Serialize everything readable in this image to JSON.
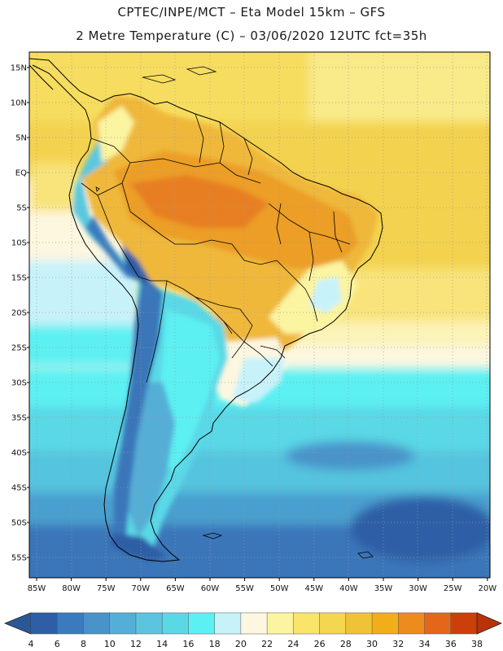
{
  "header": {
    "line1": "CPTEC/INPE/MCT –  Eta Model 15km – GFS",
    "line2": "2 Metre Temperature (C) – 03/06/2020 12UTC fct=35h"
  },
  "map": {
    "lat_labels": [
      "15N",
      "10N",
      "5N",
      "EQ",
      "5S",
      "10S",
      "15S",
      "20S",
      "25S",
      "30S",
      "35S",
      "40S",
      "45S",
      "50S",
      "55S"
    ],
    "lon_labels": [
      "85W",
      "80W",
      "75W",
      "70W",
      "65W",
      "60W",
      "55W",
      "50W",
      "45W",
      "40W",
      "35W",
      "30W",
      "25W",
      "20W"
    ],
    "region": "South America"
  },
  "colorbar": {
    "labels": [
      "4",
      "6",
      "8",
      "10",
      "12",
      "14",
      "16",
      "18",
      "20",
      "22",
      "24",
      "26",
      "28",
      "30",
      "32",
      "34",
      "36",
      "38"
    ],
    "colors": [
      "#2e5fa6",
      "#3b7bbd",
      "#4a93c9",
      "#55aed6",
      "#5cc4de",
      "#5ad8e6",
      "#5cf0f2",
      "#c8f2fa",
      "#fdf7e0",
      "#fbf4a0",
      "#f8e56a",
      "#f4d64f",
      "#efc336",
      "#f2ae18",
      "#ed8c1d",
      "#e4661a",
      "#cc3f0a"
    ],
    "left_arrow_color": "#2a5897",
    "right_arrow_color": "#b8330a"
  }
}
